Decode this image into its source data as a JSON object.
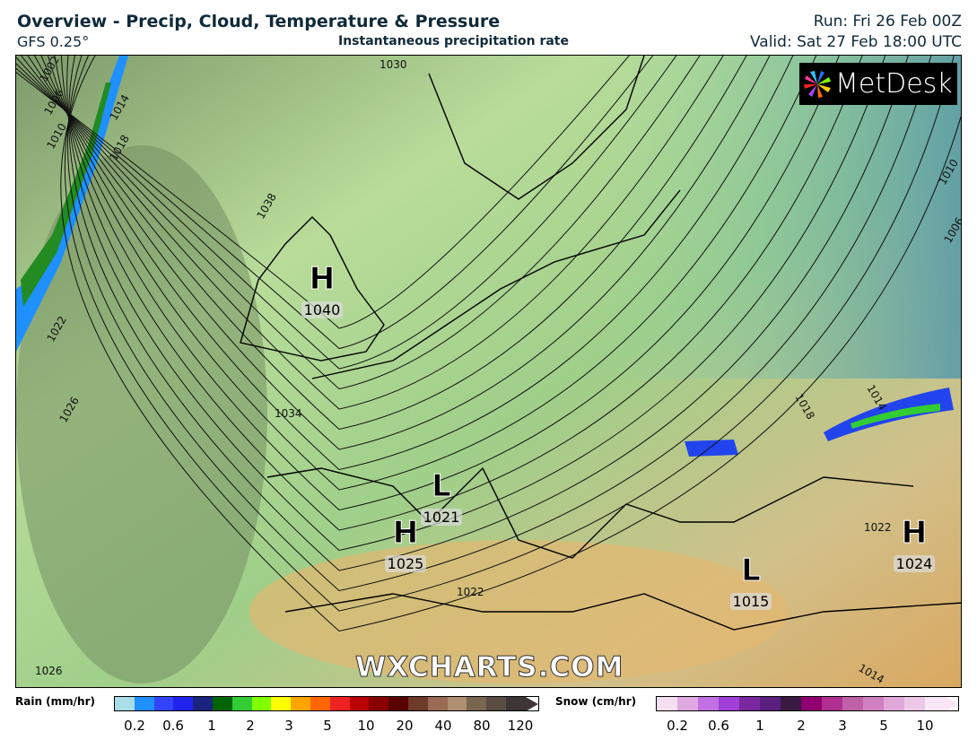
{
  "header": {
    "title": "Overview - Precip, Cloud, Temperature & Pressure",
    "model": "GFS 0.25°",
    "subtitle": "Instantaneous precipitation rate",
    "run": "Run: Fri 26 Feb 00Z",
    "valid": "Valid: Sat 27 Feb 18:00 UTC"
  },
  "logo": {
    "text": "MetDesk"
  },
  "watermark": "WXCHARTS.COM",
  "pressure_centers": [
    {
      "type": "H",
      "value": "1040"
    },
    {
      "type": "L",
      "value": "1021"
    },
    {
      "type": "H",
      "value": "1025"
    },
    {
      "type": "L",
      "value": "1015"
    },
    {
      "type": "H",
      "value": "1024"
    }
  ],
  "isobar_labels": [
    "1030",
    "1002",
    "1006",
    "1010",
    "1014",
    "1018",
    "1038",
    "1022",
    "1026",
    "1034",
    "1022",
    "1026",
    "1010",
    "1006",
    "1018",
    "1014",
    "1022",
    "1014"
  ],
  "legend": {
    "rain": {
      "label": "Rain (mm/hr)",
      "ticks": [
        "0.2",
        "0.6",
        "1",
        "2",
        "3",
        "5",
        "10",
        "20",
        "40",
        "80",
        "120"
      ],
      "colors": [
        "#a9dde8",
        "#1e90ff",
        "#3344ff",
        "#2222ee",
        "#1a237e",
        "#006400",
        "#32cd32",
        "#7fff00",
        "#ffff00",
        "#ffa500",
        "#ff6600",
        "#ee2222",
        "#bb0000",
        "#880000",
        "#5a0000",
        "#6e3a2a",
        "#9a6a55",
        "#b09070",
        "#7a6650",
        "#5a4c44",
        "#3e3636"
      ]
    },
    "snow": {
      "label": "Snow (cm/hr)",
      "ticks": [
        "0.2",
        "0.6",
        "1",
        "2",
        "3",
        "5",
        "10"
      ],
      "colors": [
        "#f3dff0",
        "#e0a8e0",
        "#c070e0",
        "#a040d8",
        "#7a28a0",
        "#5a2080",
        "#3a1a40",
        "#900070",
        "#b03090",
        "#c060a8",
        "#d080c0",
        "#e0a8d8",
        "#ecc8e8",
        "#f6e6f6"
      ]
    }
  }
}
